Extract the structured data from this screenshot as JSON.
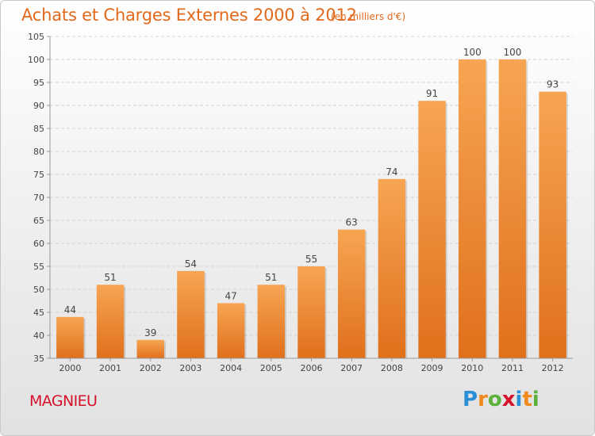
{
  "title": "Achats et Charges Externes 2000 à 2012",
  "unit": "(en milliers d'€)",
  "commune": "MAGNIEU",
  "logo_text": "Proxiti",
  "colors": {
    "title": "#e2691b",
    "commune": "#d5122c",
    "bar_top": "#f7a552",
    "bar_bottom": "#e0701c"
  },
  "chart_data": {
    "type": "bar",
    "categories": [
      "2000",
      "2001",
      "2002",
      "2003",
      "2004",
      "2005",
      "2006",
      "2007",
      "2008",
      "2009",
      "2010",
      "2011",
      "2012"
    ],
    "values": [
      44,
      51,
      39,
      54,
      47,
      51,
      55,
      63,
      74,
      91,
      100,
      100,
      93
    ],
    "ylim": [
      35,
      105
    ],
    "yticks": [
      35,
      40,
      45,
      50,
      55,
      60,
      65,
      70,
      75,
      80,
      85,
      90,
      95,
      100,
      105
    ],
    "grid": true,
    "data_labels": true
  }
}
